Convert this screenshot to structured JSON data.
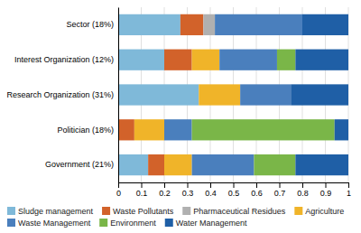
{
  "chart_data": {
    "type": "bar",
    "orientation": "horizontal",
    "stacked": true,
    "categories": [
      "Government (21%)",
      "Politician (18%)",
      "Research Organization  (31%)",
      "Interest Organization  (12%)",
      "Sector (18%)"
    ],
    "series": [
      {
        "name": "Sludge management",
        "color": "#7fb9d9",
        "values": [
          0.13,
          0.0,
          0.35,
          0.2,
          0.27
        ]
      },
      {
        "name": "Waste Pollutants",
        "color": "#d2622a",
        "values": [
          0.07,
          0.07,
          0.0,
          0.12,
          0.1
        ]
      },
      {
        "name": "Pharmaceutical Residues",
        "color": "#b0b0b0",
        "values": [
          0.0,
          0.0,
          0.0,
          0.0,
          0.05
        ]
      },
      {
        "name": "Agriculture",
        "color": "#f0b429",
        "values": [
          0.12,
          0.13,
          0.18,
          0.12,
          0.0
        ]
      },
      {
        "name": "Waste Management",
        "color": "#4a7fbd",
        "values": [
          0.27,
          0.12,
          0.22,
          0.25,
          0.38
        ]
      },
      {
        "name": "Environment",
        "color": "#7ab648",
        "values": [
          0.18,
          0.62,
          0.0,
          0.08,
          0.0
        ]
      },
      {
        "name": "Water Management",
        "color": "#1f5fa6",
        "values": [
          0.23,
          0.06,
          0.25,
          0.23,
          0.2
        ]
      }
    ],
    "xlim": [
      0,
      1.0
    ],
    "xticks": [
      0,
      0.1,
      0.2,
      0.3,
      0.4,
      0.5,
      0.6,
      0.7,
      0.8,
      0.9,
      1
    ],
    "grid": true,
    "legend": "bottom"
  }
}
